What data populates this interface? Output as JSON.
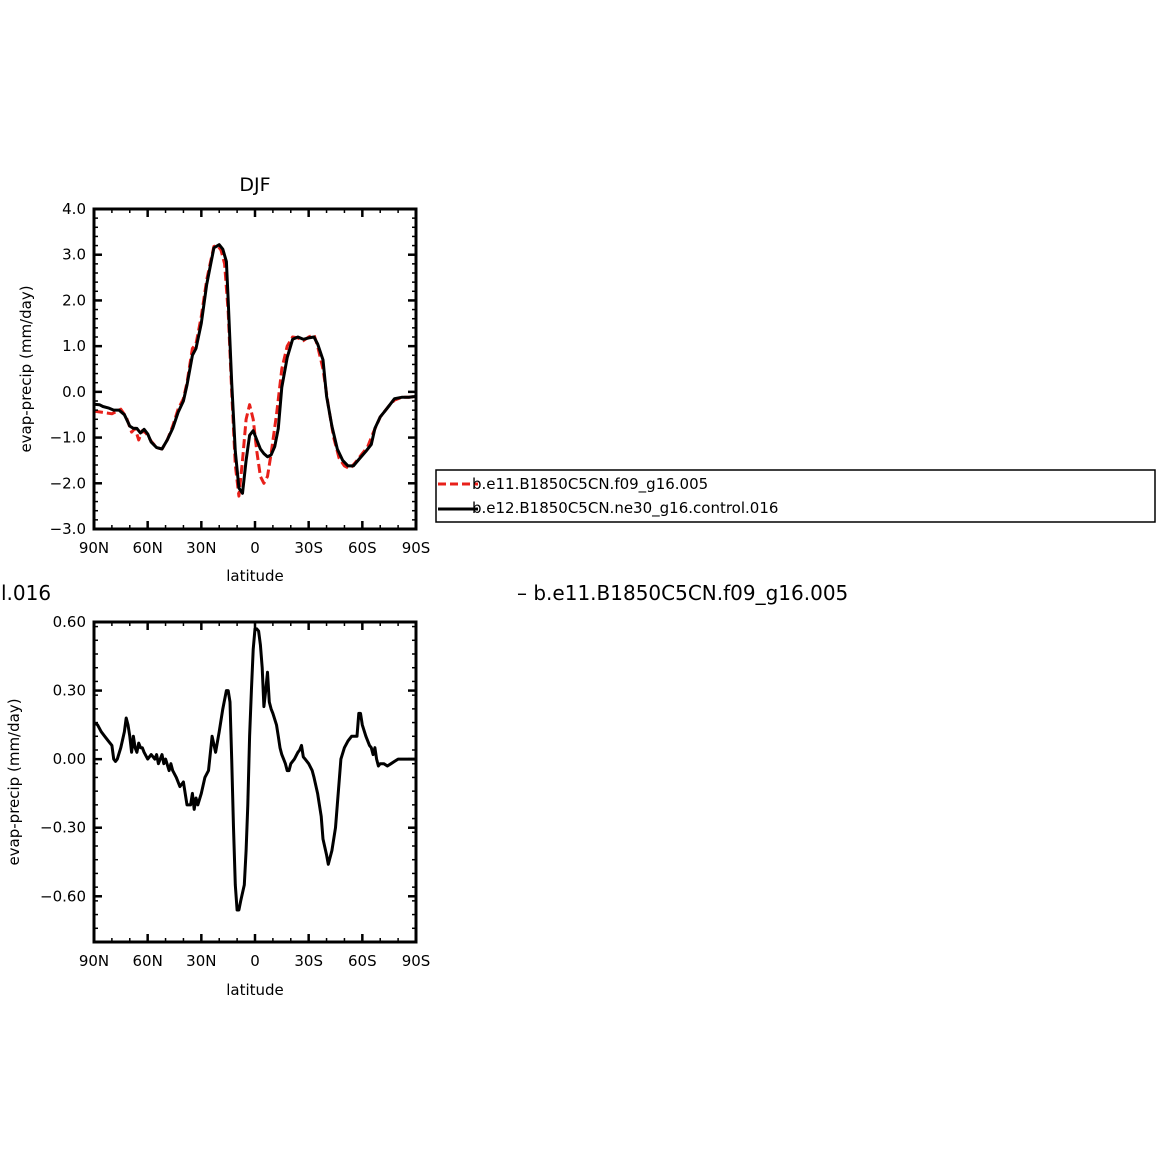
{
  "chart_data": [
    {
      "type": "line",
      "title": "DJF",
      "xlabel": "latitude",
      "ylabel": "evap-precip (mm/day)",
      "xlim": [
        90,
        -90
      ],
      "ylim": [
        -3.0,
        4.0
      ],
      "x_ticks": [
        90,
        60,
        30,
        0,
        -30,
        -60,
        -90
      ],
      "x_tick_labels": [
        "90N",
        "60N",
        "30N",
        "0",
        "30S",
        "60S",
        "90S"
      ],
      "y_ticks": [
        -3,
        -2,
        -1,
        0,
        1,
        2,
        3,
        4
      ],
      "y_tick_labels": [
        "-3.0",
        "-2.0",
        "-1.0",
        "0.0",
        "1.0",
        "2.0",
        "3.0",
        "4.0"
      ],
      "grid": false,
      "legend_position": "right",
      "series": [
        {
          "name": "b.e11.B1850C5CN.f09_g16.005",
          "color": "#e8201a",
          "dash": "dashed",
          "points": [
            [
              90,
              -0.42
            ],
            [
              85,
              -0.45
            ],
            [
              80,
              -0.48
            ],
            [
              75,
              -0.38
            ],
            [
              72,
              -0.55
            ],
            [
              69,
              -0.88
            ],
            [
              67,
              -0.8
            ],
            [
              65,
              -1.05
            ],
            [
              63,
              -0.85
            ],
            [
              61,
              -0.9
            ],
            [
              58,
              -1.08
            ],
            [
              55,
              -1.22
            ],
            [
              52,
              -1.25
            ],
            [
              49,
              -1.05
            ],
            [
              46,
              -0.75
            ],
            [
              43,
              -0.38
            ],
            [
              40,
              -0.15
            ],
            [
              38,
              0.2
            ],
            [
              35,
              0.95
            ],
            [
              33,
              1.05
            ],
            [
              30,
              1.65
            ],
            [
              27,
              2.45
            ],
            [
              25,
              2.82
            ],
            [
              23,
              3.18
            ],
            [
              21,
              3.2
            ],
            [
              19,
              3.1
            ],
            [
              17,
              2.8
            ],
            [
              15,
              1.75
            ],
            [
              13,
              0.0
            ],
            [
              11,
              -1.6
            ],
            [
              9,
              -2.28
            ],
            [
              7,
              -1.5
            ],
            [
              5,
              -0.6
            ],
            [
              3,
              -0.28
            ],
            [
              1,
              -0.6
            ],
            [
              -1,
              -1.3
            ],
            [
              -3,
              -1.85
            ],
            [
              -5,
              -2.0
            ],
            [
              -7,
              -1.85
            ],
            [
              -9,
              -1.35
            ],
            [
              -12,
              -0.5
            ],
            [
              -15,
              0.5
            ],
            [
              -18,
              1.0
            ],
            [
              -21,
              1.2
            ],
            [
              -24,
              1.18
            ],
            [
              -27,
              1.12
            ],
            [
              -30,
              1.2
            ],
            [
              -33,
              1.25
            ],
            [
              -35,
              1.0
            ],
            [
              -38,
              0.5
            ],
            [
              -41,
              -0.3
            ],
            [
              -44,
              -1.0
            ],
            [
              -47,
              -1.45
            ],
            [
              -50,
              -1.62
            ],
            [
              -53,
              -1.68
            ],
            [
              -56,
              -1.55
            ],
            [
              -60,
              -1.35
            ],
            [
              -63,
              -1.2
            ],
            [
              -66,
              -0.9
            ],
            [
              -70,
              -0.55
            ],
            [
              -75,
              -0.3
            ],
            [
              -78,
              -0.18
            ],
            [
              -82,
              -0.12
            ],
            [
              -86,
              -0.12
            ],
            [
              -90,
              -0.1
            ]
          ]
        },
        {
          "name": "b.e12.B1850C5CN.ne30_g16.control.016",
          "color": "#000000",
          "dash": "solid",
          "points": [
            [
              90,
              -0.27
            ],
            [
              87,
              -0.28
            ],
            [
              85,
              -0.32
            ],
            [
              82,
              -0.35
            ],
            [
              79,
              -0.4
            ],
            [
              76,
              -0.4
            ],
            [
              73,
              -0.5
            ],
            [
              70,
              -0.75
            ],
            [
              68,
              -0.8
            ],
            [
              66,
              -0.8
            ],
            [
              64,
              -0.9
            ],
            [
              62,
              -0.82
            ],
            [
              60,
              -0.92
            ],
            [
              58,
              -1.1
            ],
            [
              55,
              -1.22
            ],
            [
              52,
              -1.25
            ],
            [
              49,
              -1.05
            ],
            [
              46,
              -0.8
            ],
            [
              43,
              -0.45
            ],
            [
              40,
              -0.2
            ],
            [
              38,
              0.15
            ],
            [
              35,
              0.8
            ],
            [
              33,
              0.95
            ],
            [
              30,
              1.5
            ],
            [
              27,
              2.35
            ],
            [
              25,
              2.75
            ],
            [
              23,
              3.15
            ],
            [
              20,
              3.22
            ],
            [
              18,
              3.12
            ],
            [
              16,
              2.85
            ],
            [
              15,
              2.0
            ],
            [
              13,
              0.2
            ],
            [
              11,
              -1.3
            ],
            [
              9,
              -2.1
            ],
            [
              7,
              -2.22
            ],
            [
              5,
              -1.5
            ],
            [
              3,
              -0.95
            ],
            [
              1,
              -0.85
            ],
            [
              -1,
              -1.05
            ],
            [
              -3,
              -1.25
            ],
            [
              -5,
              -1.35
            ],
            [
              -7,
              -1.42
            ],
            [
              -9,
              -1.38
            ],
            [
              -11,
              -1.2
            ],
            [
              -13,
              -0.8
            ],
            [
              -15,
              0.1
            ],
            [
              -18,
              0.75
            ],
            [
              -21,
              1.15
            ],
            [
              -24,
              1.2
            ],
            [
              -27,
              1.15
            ],
            [
              -30,
              1.18
            ],
            [
              -33,
              1.2
            ],
            [
              -35,
              1.05
            ],
            [
              -38,
              0.7
            ],
            [
              -40,
              -0.1
            ],
            [
              -43,
              -0.75
            ],
            [
              -46,
              -1.25
            ],
            [
              -49,
              -1.5
            ],
            [
              -52,
              -1.62
            ],
            [
              -55,
              -1.62
            ],
            [
              -58,
              -1.48
            ],
            [
              -62,
              -1.3
            ],
            [
              -65,
              -1.15
            ],
            [
              -67,
              -0.8
            ],
            [
              -70,
              -0.55
            ],
            [
              -74,
              -0.35
            ],
            [
              -78,
              -0.15
            ],
            [
              -82,
              -0.12
            ],
            [
              -86,
              -0.12
            ],
            [
              -90,
              -0.1
            ]
          ]
        }
      ]
    },
    {
      "type": "line",
      "title_partial": "l.016",
      "title_right": "– b.e11.B1850C5CN.f09_g16.005",
      "xlabel": "latitude",
      "ylabel": "evap-precip (mm/day)",
      "xlim": [
        90,
        -90
      ],
      "ylim": [
        -0.8,
        0.6
      ],
      "x_ticks": [
        90,
        60,
        30,
        0,
        -30,
        -60,
        -90
      ],
      "x_tick_labels": [
        "90N",
        "60N",
        "30N",
        "0",
        "30S",
        "60S",
        "90S"
      ],
      "y_ticks": [
        -0.6,
        -0.3,
        0.0,
        0.3,
        0.6
      ],
      "y_tick_labels": [
        "-0.60",
        "-0.30",
        "0.00",
        "0.30",
        "0.60"
      ],
      "grid": false,
      "series": [
        {
          "color": "#000000",
          "dash": "solid",
          "points": [
            [
              90,
              0.16
            ],
            [
              88,
              0.15
            ],
            [
              86,
              0.12
            ],
            [
              84,
              0.1
            ],
            [
              82,
              0.08
            ],
            [
              80,
              0.06
            ],
            [
              79,
              0.0
            ],
            [
              78,
              -0.01
            ],
            [
              77,
              0.0
            ],
            [
              75,
              0.05
            ],
            [
              73,
              0.12
            ],
            [
              72,
              0.18
            ],
            [
              71,
              0.15
            ],
            [
              70,
              0.1
            ],
            [
              69,
              0.03
            ],
            [
              68,
              0.1
            ],
            [
              67,
              0.05
            ],
            [
              66,
              0.03
            ],
            [
              65,
              0.07
            ],
            [
              64,
              0.05
            ],
            [
              63,
              0.05
            ],
            [
              62,
              0.03
            ],
            [
              60,
              0.0
            ],
            [
              58,
              0.02
            ],
            [
              56,
              0.0
            ],
            [
              55,
              0.02
            ],
            [
              54,
              -0.02
            ],
            [
              52,
              0.02
            ],
            [
              51,
              -0.02
            ],
            [
              50,
              0.0
            ],
            [
              48,
              -0.05
            ],
            [
              47,
              -0.02
            ],
            [
              46,
              -0.05
            ],
            [
              44,
              -0.08
            ],
            [
              42,
              -0.12
            ],
            [
              40,
              -0.1
            ],
            [
              38,
              -0.2
            ],
            [
              36,
              -0.2
            ],
            [
              35,
              -0.15
            ],
            [
              34,
              -0.22
            ],
            [
              33,
              -0.17
            ],
            [
              32,
              -0.2
            ],
            [
              30,
              -0.15
            ],
            [
              28,
              -0.08
            ],
            [
              26,
              -0.05
            ],
            [
              24,
              0.1
            ],
            [
              22,
              0.03
            ],
            [
              20,
              0.12
            ],
            [
              18,
              0.22
            ],
            [
              16,
              0.3
            ],
            [
              15,
              0.3
            ],
            [
              14,
              0.25
            ],
            [
              13,
              0.0
            ],
            [
              12,
              -0.3
            ],
            [
              11,
              -0.55
            ],
            [
              10,
              -0.66
            ],
            [
              9,
              -0.66
            ],
            [
              8,
              -0.62
            ],
            [
              6,
              -0.55
            ],
            [
              5,
              -0.4
            ],
            [
              4,
              -0.2
            ],
            [
              3,
              0.1
            ],
            [
              2,
              0.3
            ],
            [
              1,
              0.48
            ],
            [
              0,
              0.57
            ],
            [
              -1,
              0.57
            ],
            [
              -2,
              0.56
            ],
            [
              -3,
              0.5
            ],
            [
              -4,
              0.4
            ],
            [
              -5,
              0.23
            ],
            [
              -6,
              0.3
            ],
            [
              -7,
              0.38
            ],
            [
              -8,
              0.25
            ],
            [
              -9,
              0.22
            ],
            [
              -10,
              0.2
            ],
            [
              -12,
              0.15
            ],
            [
              -13,
              0.1
            ],
            [
              -14,
              0.05
            ],
            [
              -15,
              0.02
            ],
            [
              -16,
              0.0
            ],
            [
              -17,
              -0.02
            ],
            [
              -18,
              -0.05
            ],
            [
              -19,
              -0.05
            ],
            [
              -20,
              -0.02
            ],
            [
              -22,
              0.0
            ],
            [
              -24,
              0.03
            ],
            [
              -25,
              0.04
            ],
            [
              -26,
              0.06
            ],
            [
              -27,
              0.01
            ],
            [
              -28,
              0.0
            ],
            [
              -30,
              -0.02
            ],
            [
              -32,
              -0.05
            ],
            [
              -33,
              -0.08
            ],
            [
              -35,
              -0.15
            ],
            [
              -37,
              -0.25
            ],
            [
              -38,
              -0.35
            ],
            [
              -40,
              -0.42
            ],
            [
              -41,
              -0.46
            ],
            [
              -42,
              -0.43
            ],
            [
              -43,
              -0.4
            ],
            [
              -45,
              -0.3
            ],
            [
              -46,
              -0.2
            ],
            [
              -47,
              -0.1
            ],
            [
              -48,
              0.0
            ],
            [
              -50,
              0.05
            ],
            [
              -52,
              0.08
            ],
            [
              -54,
              0.1
            ],
            [
              -55,
              0.1
            ],
            [
              -57,
              0.1
            ],
            [
              -58,
              0.2
            ],
            [
              -59,
              0.2
            ],
            [
              -60,
              0.15
            ],
            [
              -62,
              0.1
            ],
            [
              -64,
              0.06
            ],
            [
              -65,
              0.05
            ],
            [
              -66,
              0.02
            ],
            [
              -67,
              0.05
            ],
            [
              -68,
              0.0
            ],
            [
              -69,
              -0.03
            ],
            [
              -70,
              -0.02
            ],
            [
              -72,
              -0.02
            ],
            [
              -74,
              -0.03
            ],
            [
              -76,
              -0.02
            ],
            [
              -78,
              -0.01
            ],
            [
              -80,
              0.0
            ],
            [
              -82,
              0.0
            ],
            [
              -84,
              0.0
            ],
            [
              -86,
              0.0
            ],
            [
              -88,
              0.0
            ],
            [
              -90,
              0.0
            ]
          ]
        }
      ]
    }
  ]
}
